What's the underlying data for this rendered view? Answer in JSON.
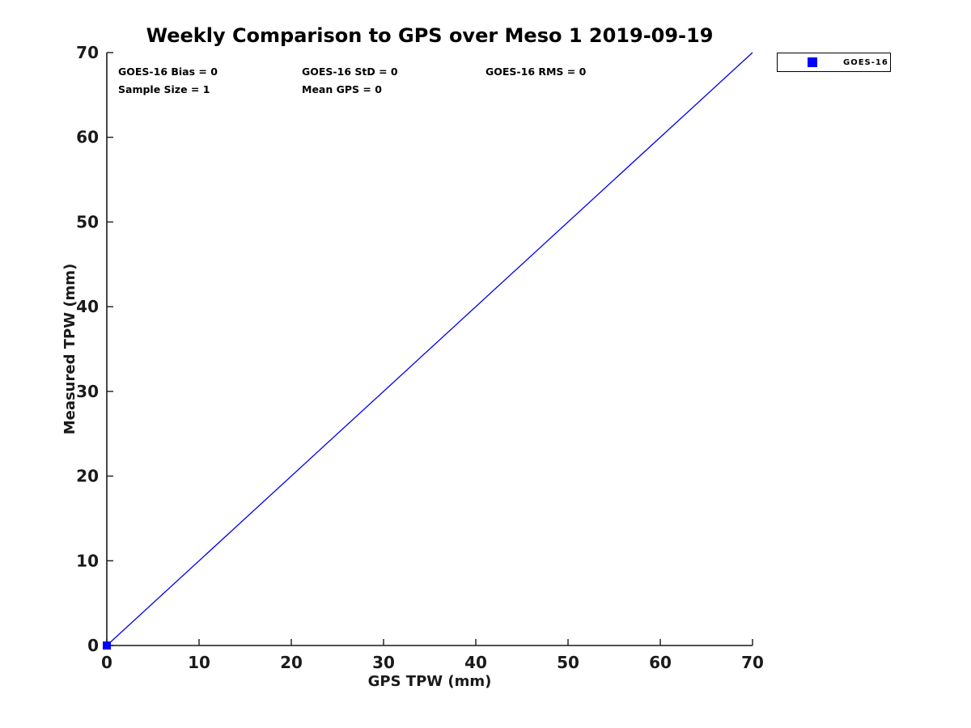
{
  "chart_data": {
    "type": "scatter",
    "title": "Weekly Comparison to GPS over Meso 1 2019-09-19",
    "xlabel": "GPS TPW (mm)",
    "ylabel": "Measured TPW (mm)",
    "xlim": [
      0,
      70
    ],
    "ylim": [
      0,
      70
    ],
    "xticks": [
      0,
      10,
      20,
      30,
      40,
      50,
      60,
      70
    ],
    "yticks": [
      0,
      10,
      20,
      30,
      40,
      50,
      60,
      70
    ],
    "grid": false,
    "axis_color": "#1a1a1a",
    "series": [
      {
        "name": "GOES-16",
        "marker": "square",
        "color": "#0000ff",
        "points": [
          [
            0,
            0
          ]
        ]
      }
    ],
    "identity_line": {
      "x": [
        0,
        70
      ],
      "y": [
        0,
        70
      ],
      "color": "#0000ee"
    },
    "legend_position": "outside-top-right"
  },
  "stats": {
    "bias": "GOES-16 Bias = 0",
    "std": "GOES-16 StD = 0",
    "rms": "GOES-16 RMS = 0",
    "sample_size": "Sample Size = 1",
    "mean_gps": "Mean GPS = 0"
  },
  "legend": {
    "entries": [
      {
        "label": "GOES-16",
        "marker": "square",
        "color": "#0000ff"
      }
    ]
  }
}
